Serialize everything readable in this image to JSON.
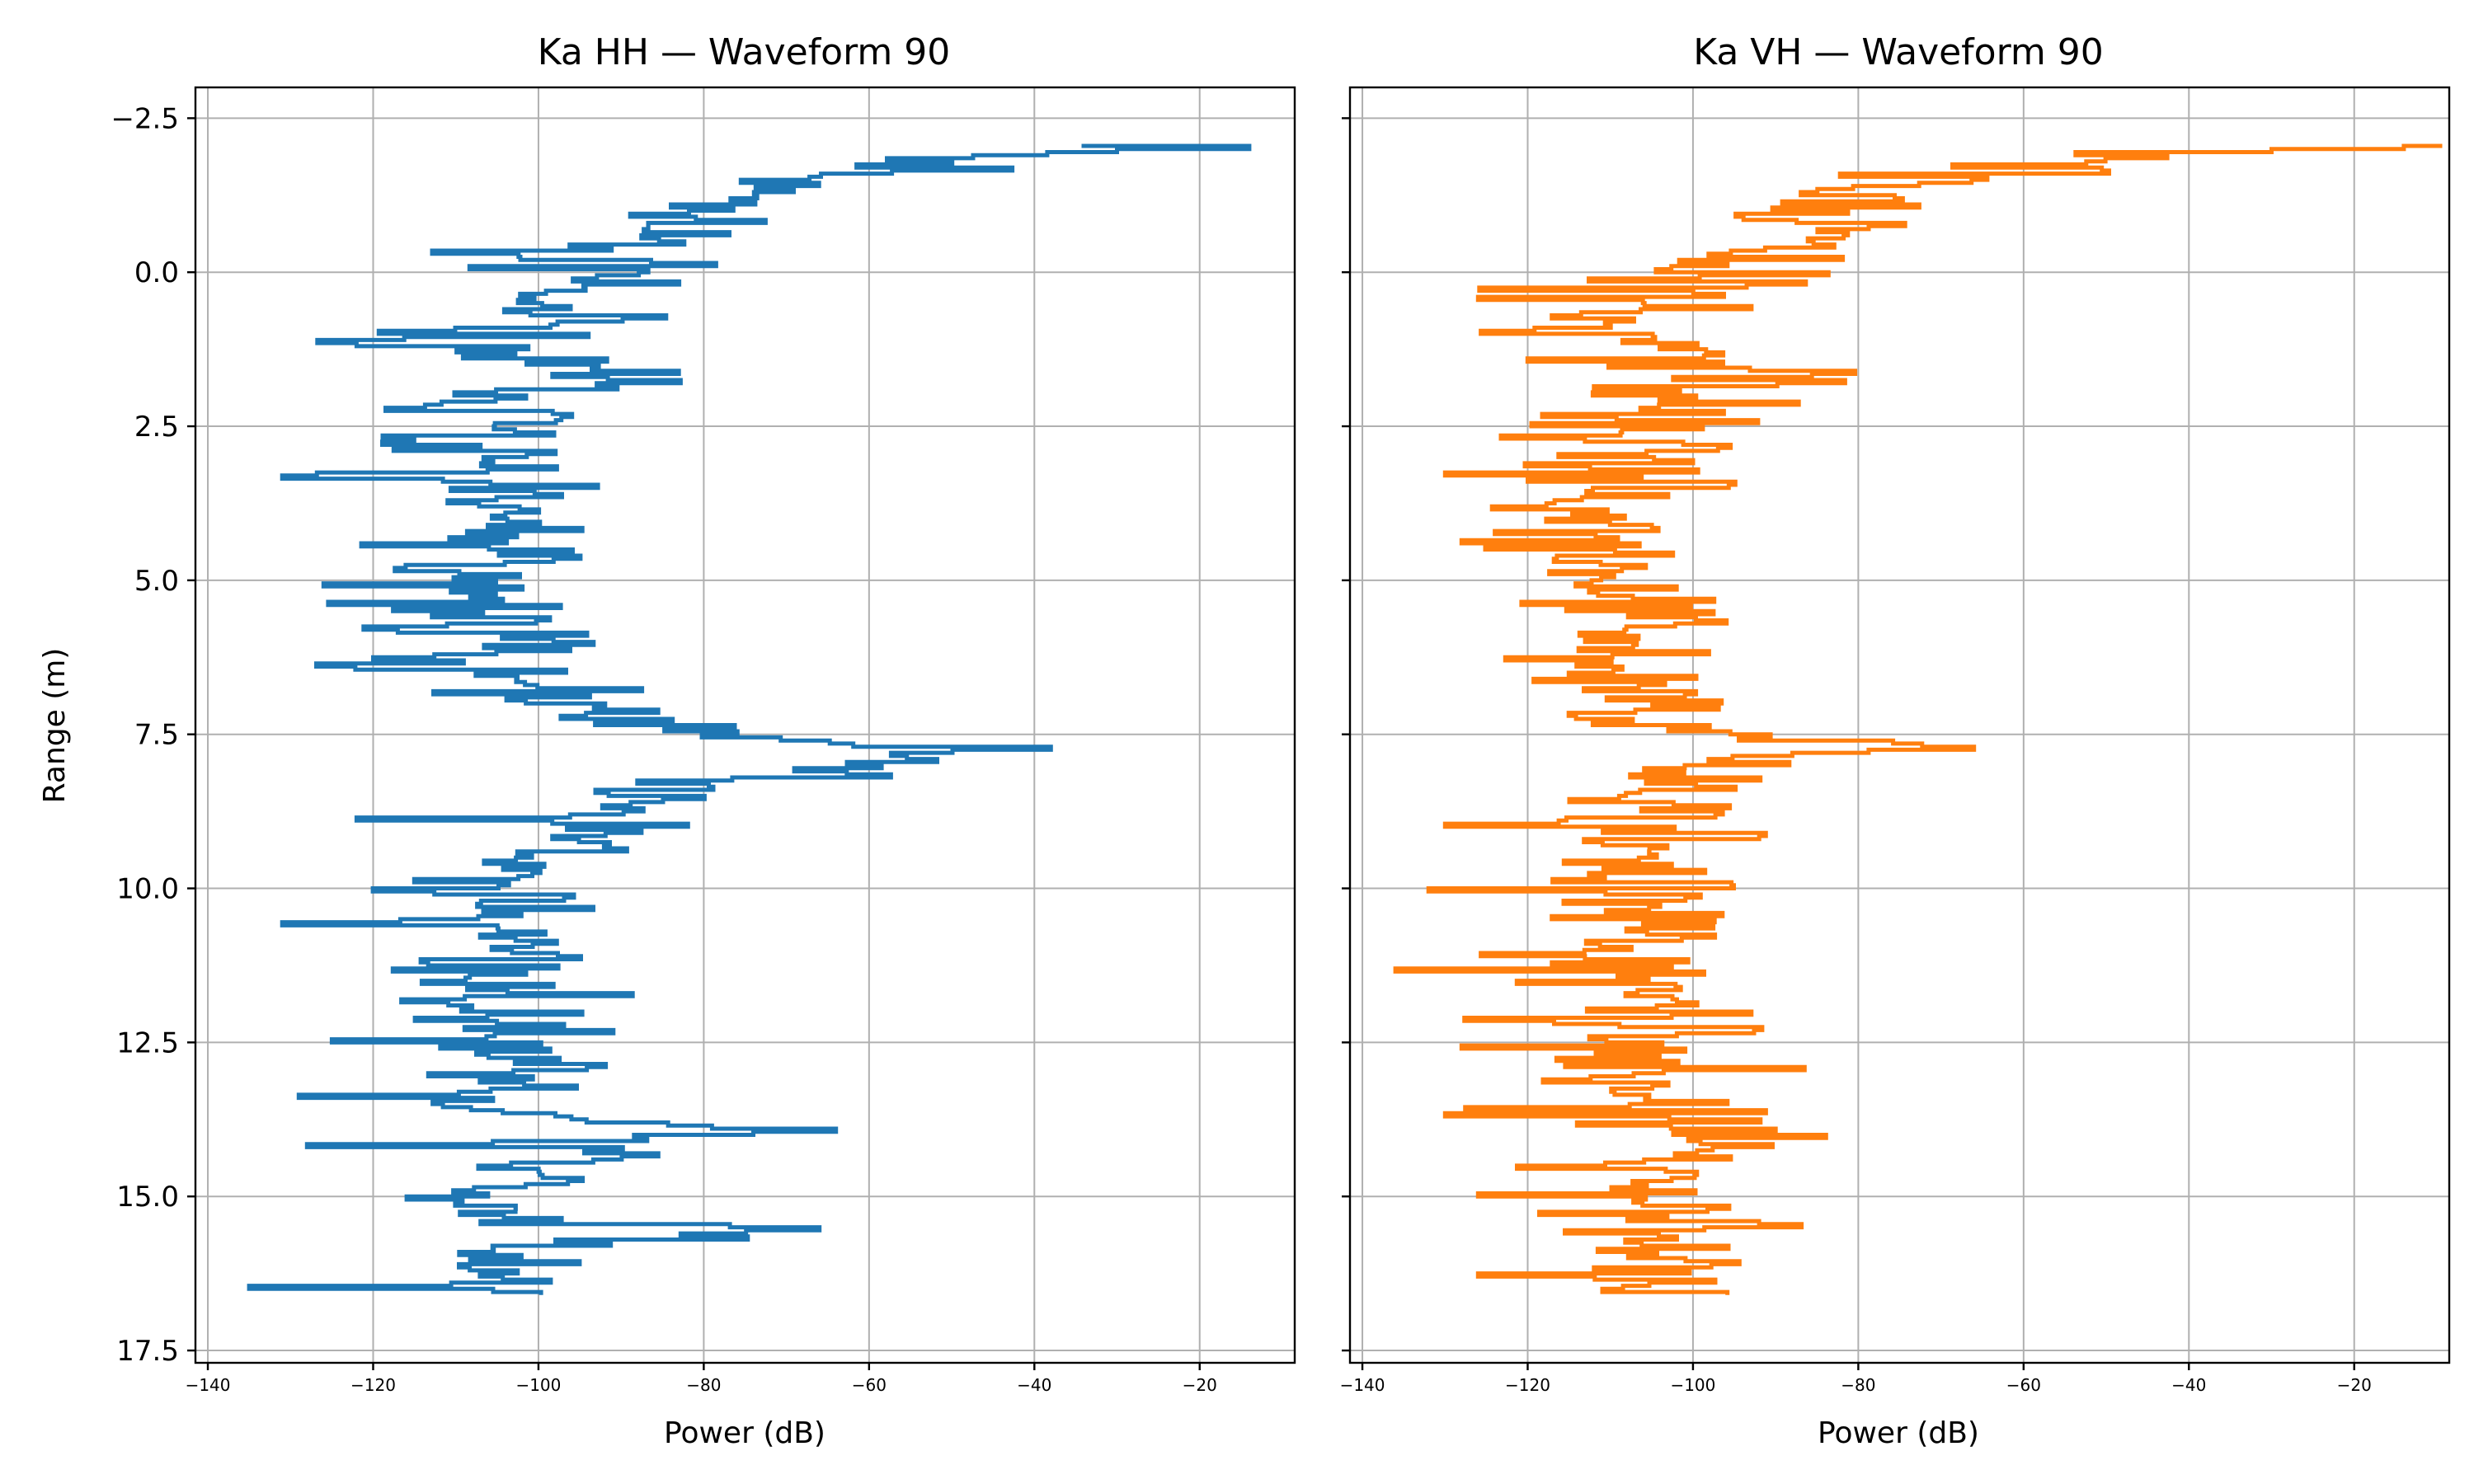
{
  "chart_data": [
    {
      "type": "line",
      "title": "Ka HH — Waveform 90",
      "xlabel": "Power (dB)",
      "ylabel": "Range (m)",
      "xlim": [
        -141.5,
        -8.5
      ],
      "ylim": [
        17.7,
        -3.0
      ],
      "y_inverted": true,
      "grid": true,
      "xticks": [
        -140,
        -120,
        -100,
        -80,
        -60,
        -40,
        -20
      ],
      "xtick_labels": [
        "−140",
        "−120",
        "−100",
        "−80",
        "−60",
        "−40",
        "−20"
      ],
      "yticks": [
        -2.5,
        0.0,
        2.5,
        5.0,
        7.5,
        10.0,
        12.5,
        15.0,
        17.5
      ],
      "ytick_labels": [
        "−2.5",
        "0.0",
        "2.5",
        "5.0",
        "7.5",
        "10.0",
        "12.5",
        "15.0",
        "17.5"
      ],
      "color": "#1f77b4",
      "range_step_m": 0.05,
      "profile": [
        [
          -2.05,
          -14
        ],
        [
          -1.95,
          -30
        ],
        [
          -1.85,
          -48
        ],
        [
          -1.7,
          -56
        ],
        [
          -1.5,
          -62
        ],
        [
          -1.3,
          -72
        ],
        [
          -1.0,
          -80
        ],
        [
          -0.6,
          -86
        ],
        [
          -0.2,
          -90
        ],
        [
          0.0,
          -92
        ],
        [
          0.5,
          -98
        ],
        [
          1.0,
          -105
        ],
        [
          1.5,
          -104
        ],
        [
          1.7,
          -88
        ],
        [
          2.0,
          -100
        ],
        [
          2.6,
          -108
        ],
        [
          3.5,
          -106
        ],
        [
          4.5,
          -106
        ],
        [
          5.5,
          -106
        ],
        [
          6.5,
          -105
        ],
        [
          7.0,
          -100
        ],
        [
          7.3,
          -88
        ],
        [
          7.6,
          -72
        ],
        [
          7.75,
          -40
        ],
        [
          8.0,
          -62
        ],
        [
          8.4,
          -82
        ],
        [
          9.0,
          -94
        ],
        [
          9.5,
          -98
        ],
        [
          10.0,
          -102
        ],
        [
          11.0,
          -104
        ],
        [
          12.5,
          -104
        ],
        [
          13.5,
          -102
        ],
        [
          13.8,
          -98
        ],
        [
          13.95,
          -66
        ],
        [
          14.3,
          -98
        ],
        [
          15.0,
          -104
        ],
        [
          15.45,
          -100
        ],
        [
          15.55,
          -70
        ],
        [
          15.8,
          -100
        ],
        [
          16.3,
          -104
        ],
        [
          16.6,
          -102
        ]
      ],
      "spikes": [
        [
          -2.0,
          -14
        ],
        [
          -1.95,
          -30
        ],
        [
          7.77,
          -38
        ],
        [
          13.95,
          -64
        ],
        [
          15.53,
          -66
        ],
        [
          3.35,
          -131
        ],
        [
          10.6,
          -131
        ],
        [
          16.5,
          -135
        ],
        [
          5.1,
          -126
        ],
        [
          12.5,
          -125
        ],
        [
          13.4,
          -129
        ],
        [
          14.2,
          -128
        ],
        [
          1.2,
          -122
        ],
        [
          8.9,
          -122
        ],
        [
          6.3,
          -120
        ]
      ],
      "noise_db": 7,
      "seed": 11
    },
    {
      "type": "line",
      "title": "Ka VH — Waveform 90",
      "xlabel": "Power (dB)",
      "ylabel": "",
      "xlim": [
        -141.5,
        -8.5
      ],
      "ylim": [
        17.7,
        -3.0
      ],
      "y_inverted": true,
      "grid": true,
      "xticks": [
        -140,
        -120,
        -100,
        -80,
        -60,
        -40,
        -20
      ],
      "xtick_labels": [
        "−140",
        "−120",
        "−100",
        "−80",
        "−60",
        "−40",
        "−20"
      ],
      "yticks": [
        -2.5,
        0.0,
        2.5,
        5.0,
        7.5,
        10.0,
        12.5,
        15.0,
        17.5
      ],
      "ytick_labels": [
        "−2.5",
        "0.0",
        "2.5",
        "5.0",
        "7.5",
        "10.0",
        "12.5",
        "15.0",
        "17.5"
      ],
      "color": "#ff7f0e",
      "range_step_m": 0.05,
      "profile": [
        [
          -2.05,
          -14
        ],
        [
          -1.95,
          -30
        ],
        [
          -1.85,
          -50
        ],
        [
          -1.6,
          -66
        ],
        [
          -1.3,
          -80
        ],
        [
          -0.8,
          -88
        ],
        [
          -0.3,
          -94
        ],
        [
          0.0,
          -98
        ],
        [
          0.5,
          -104
        ],
        [
          1.0,
          -106
        ],
        [
          1.5,
          -102
        ],
        [
          1.7,
          -90
        ],
        [
          2.0,
          -104
        ],
        [
          3.0,
          -108
        ],
        [
          4.5,
          -108
        ],
        [
          6.0,
          -108
        ],
        [
          7.0,
          -106
        ],
        [
          7.5,
          -100
        ],
        [
          7.75,
          -66
        ],
        [
          8.0,
          -98
        ],
        [
          9.0,
          -106
        ],
        [
          10.5,
          -108
        ],
        [
          12.0,
          -106
        ],
        [
          13.5,
          -104
        ],
        [
          14.0,
          -100
        ],
        [
          14.5,
          -104
        ],
        [
          15.5,
          -102
        ],
        [
          16.6,
          -102
        ]
      ],
      "spikes": [
        [
          -2.0,
          -14
        ],
        [
          -1.95,
          -30
        ],
        [
          7.77,
          -66
        ],
        [
          13.95,
          -90
        ],
        [
          15.45,
          -92
        ],
        [
          11.35,
          -136
        ],
        [
          10.05,
          -132
        ],
        [
          13.7,
          -130
        ],
        [
          9.0,
          -130
        ],
        [
          3.3,
          -130
        ],
        [
          4.4,
          -128
        ],
        [
          16.3,
          -126
        ],
        [
          0.45,
          -126
        ],
        [
          12.6,
          -128
        ],
        [
          15.0,
          -126
        ]
      ],
      "noise_db": 7,
      "seed": 29
    }
  ]
}
